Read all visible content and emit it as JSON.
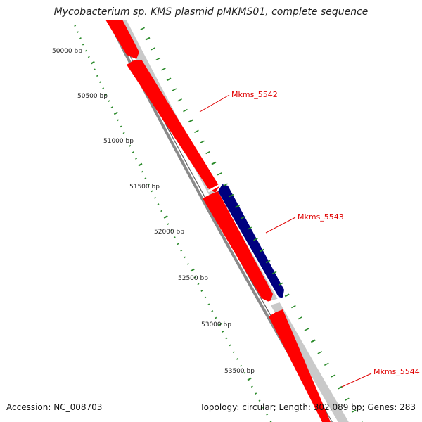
{
  "title": "Mycobacterium sp. KMS plasmid pMKMS01, complete sequence",
  "accession": "Accession: NC_008703",
  "summary": "Topology: circular; Length: 302,089 bp; Genes: 283",
  "colors": {
    "forward_gene": "#ff0000",
    "reverse_gene": "#00007f",
    "backbone": "#7a7a7a",
    "gene_track_shade": "#c9c9c9",
    "tick_mark": "#2a8a2a",
    "label_line": "#e00000"
  },
  "ruler_labels": [
    "50000 bp",
    "50500 bp",
    "51000 bp",
    "51500 bp",
    "52000 bp",
    "52500 bp",
    "53000 bp",
    "53500 bp"
  ],
  "genes": [
    {
      "name": "Mkms_5542",
      "strand": "forward",
      "labeled": true
    },
    {
      "name": "Mkms_5543",
      "strand": "reverse",
      "labeled": true
    },
    {
      "name": "Mkms_5544",
      "strand": "forward",
      "labeled": true
    }
  ]
}
